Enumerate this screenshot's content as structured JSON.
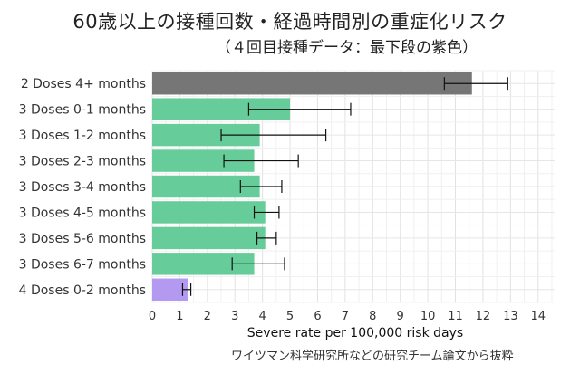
{
  "title": "60歳以上の接種回数・経過時間別の重症化リスク",
  "subtitle": "（４回目接種データ：最下段の紫色）",
  "source": "ワイツマン科学研究所などの研究チーム論文から抜粋",
  "chart_data": {
    "type": "bar",
    "orientation": "horizontal",
    "title": "60歳以上の接種回数・経過時間別の重症化リスク",
    "xlabel": "Severe rate per 100,000 risk days",
    "ylabel": "",
    "xlim": [
      0,
      14.6
    ],
    "xticks": [
      0,
      1,
      2,
      3,
      4,
      5,
      6,
      7,
      8,
      9,
      10,
      11,
      12,
      13,
      14
    ],
    "grid": true,
    "categories": [
      "2 Doses 4+ months",
      "3 Doses 0-1 months",
      "3 Doses 1-2 months",
      "3 Doses 2-3 months",
      "3 Doses 3-4 months",
      "3 Doses 4-5 months",
      "3 Doses 5-6 months",
      "3 Doses 6-7 months",
      "4 Doses 0-2 months"
    ],
    "values": [
      11.6,
      5.0,
      3.9,
      3.7,
      3.9,
      4.1,
      4.1,
      3.7,
      1.3
    ],
    "error_low": [
      10.6,
      3.5,
      2.5,
      2.6,
      3.2,
      3.7,
      3.8,
      2.9,
      1.1
    ],
    "error_high": [
      12.9,
      7.2,
      6.3,
      5.3,
      4.7,
      4.6,
      4.5,
      4.8,
      1.4
    ],
    "colors": [
      "#767676",
      "#66cc99",
      "#66cc99",
      "#66cc99",
      "#66cc99",
      "#66cc99",
      "#66cc99",
      "#66cc99",
      "#b499f0"
    ]
  }
}
